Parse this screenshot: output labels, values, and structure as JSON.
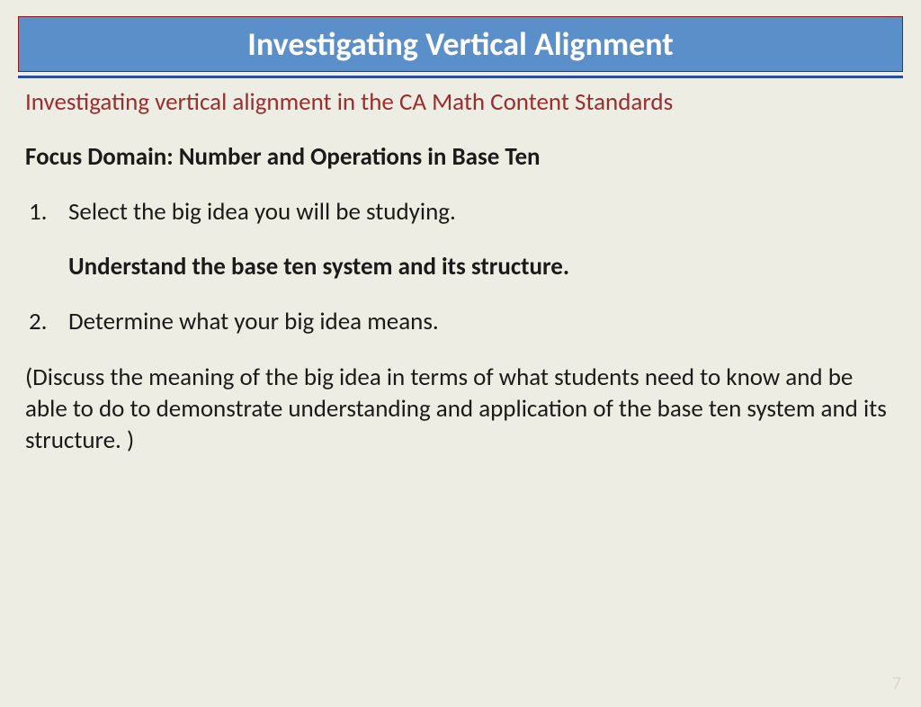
{
  "colors": {
    "background": "#eeede3",
    "title_bar_bg": "#5b8fc9",
    "title_bar_border": "#8b1a1a",
    "title_text": "#ffffff",
    "underline": "#2a4e9e",
    "subtitle_text": "#9a2e2e",
    "body_text": "#1a1a1a",
    "page_number": "#d9d7cb"
  },
  "typography": {
    "title_fontsize": 36,
    "subtitle_fontsize": 27,
    "body_fontsize": 27,
    "title_weight": "bold",
    "focus_weight": "bold",
    "big_idea_weight": "bold"
  },
  "title": "Investigating Vertical Alignment",
  "subtitle": "Investigating vertical alignment in the CA Math Content Standards",
  "focus_domain": "Focus Domain: Number and Operations in Base Ten",
  "list": [
    {
      "num": "1.",
      "text": "Select the big idea you will be studying."
    },
    {
      "num": "2.",
      "text": "Determine what your big idea means."
    }
  ],
  "big_idea": "Understand the base ten system and its structure.",
  "paragraph": "(Discuss the meaning of the big idea in terms of what students need to know and be able to do to demonstrate understanding and application of the base ten system and its structure. )",
  "page_number": "7"
}
